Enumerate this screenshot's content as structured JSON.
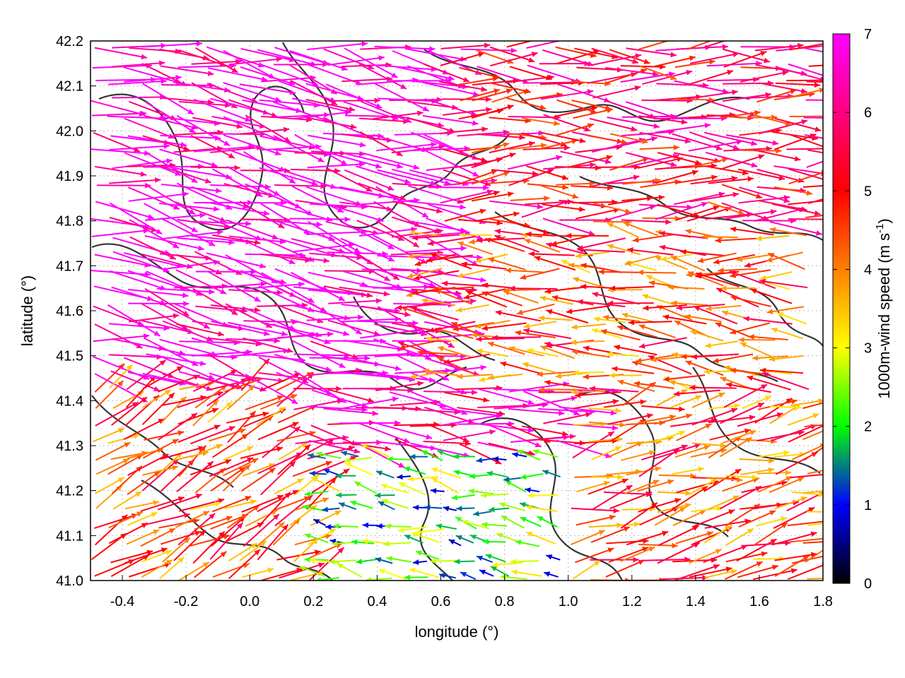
{
  "chart_data": {
    "type": "vector_field",
    "xlabel": "longitude (°)",
    "ylabel": "latitude (°)",
    "xlim": [
      -0.5,
      1.8
    ],
    "ylim": [
      41.0,
      42.2
    ],
    "xticks": [
      -0.4,
      -0.2,
      0.0,
      0.2,
      0.4,
      0.6,
      0.8,
      1.0,
      1.2,
      1.4,
      1.6,
      1.8
    ],
    "xtick_labels": [
      "-0.4",
      "-0.2",
      "0.0",
      "0.2",
      "0.4",
      "0.6",
      "0.8",
      "1.0",
      "1.2",
      "1.4",
      "1.6",
      "1.8"
    ],
    "yticks": [
      41.0,
      41.1,
      41.2,
      41.3,
      41.4,
      41.5,
      41.6,
      41.7,
      41.8,
      41.9,
      42.0,
      42.1,
      42.2
    ],
    "ytick_labels": [
      "41.0",
      "41.1",
      "41.2",
      "41.3",
      "41.4",
      "41.5",
      "41.6",
      "41.7",
      "41.8",
      "41.9",
      "42.0",
      "42.1",
      "42.2"
    ],
    "grid": true,
    "colorbar": {
      "label": "1000m-wind speed (m s",
      "label_superscript": "-1",
      "label_close": ")",
      "range": [
        0,
        7
      ],
      "ticks": [
        0,
        1,
        2,
        3,
        4,
        5,
        6,
        7
      ],
      "tick_labels": [
        "0",
        "1",
        "2",
        "3",
        "4",
        "5",
        "6",
        "7"
      ],
      "colors": [
        "#000000",
        "#0000ff",
        "#00ff00",
        "#ffff00",
        "#ff8000",
        "#ff0000",
        "#ff00ff"
      ]
    },
    "vectors_description": "wind vectors at 1000 m coloured by speed (0-7 m s-1), strongest (>7) from the west-northwest over the northwest quadrant, weaker and variable winds in the south-central region",
    "regions": [
      {
        "lon": [
          -0.5,
          0.6
        ],
        "lat": [
          41.45,
          42.2
        ],
        "speed": 7.0,
        "direction_deg": -12
      },
      {
        "lon": [
          0.4,
          1.8
        ],
        "lat": [
          41.8,
          42.2
        ],
        "speed": 5.5,
        "direction_deg": 0
      },
      {
        "lon": [
          0.1,
          1.0
        ],
        "lat": [
          41.3,
          41.45
        ],
        "speed": 6.5,
        "direction_deg": -8
      },
      {
        "lon": [
          -0.5,
          0.2
        ],
        "lat": [
          41.0,
          41.45
        ],
        "speed": 4.5,
        "direction_deg": 30
      },
      {
        "lon": [
          0.2,
          1.0
        ],
        "lat": [
          41.0,
          41.3
        ],
        "speed": 2.0,
        "direction_deg": 170
      },
      {
        "lon": [
          1.0,
          1.8
        ],
        "lat": [
          41.0,
          41.4
        ],
        "speed": 4.5,
        "direction_deg": 15
      },
      {
        "lon": [
          1.3,
          1.8
        ],
        "lat": [
          41.0,
          41.1
        ],
        "speed": 4.0,
        "direction_deg": 0
      },
      {
        "lon": [
          0.6,
          1.8
        ],
        "lat": [
          41.4,
          41.8
        ],
        "speed": 4.5,
        "direction_deg": 175
      }
    ]
  }
}
